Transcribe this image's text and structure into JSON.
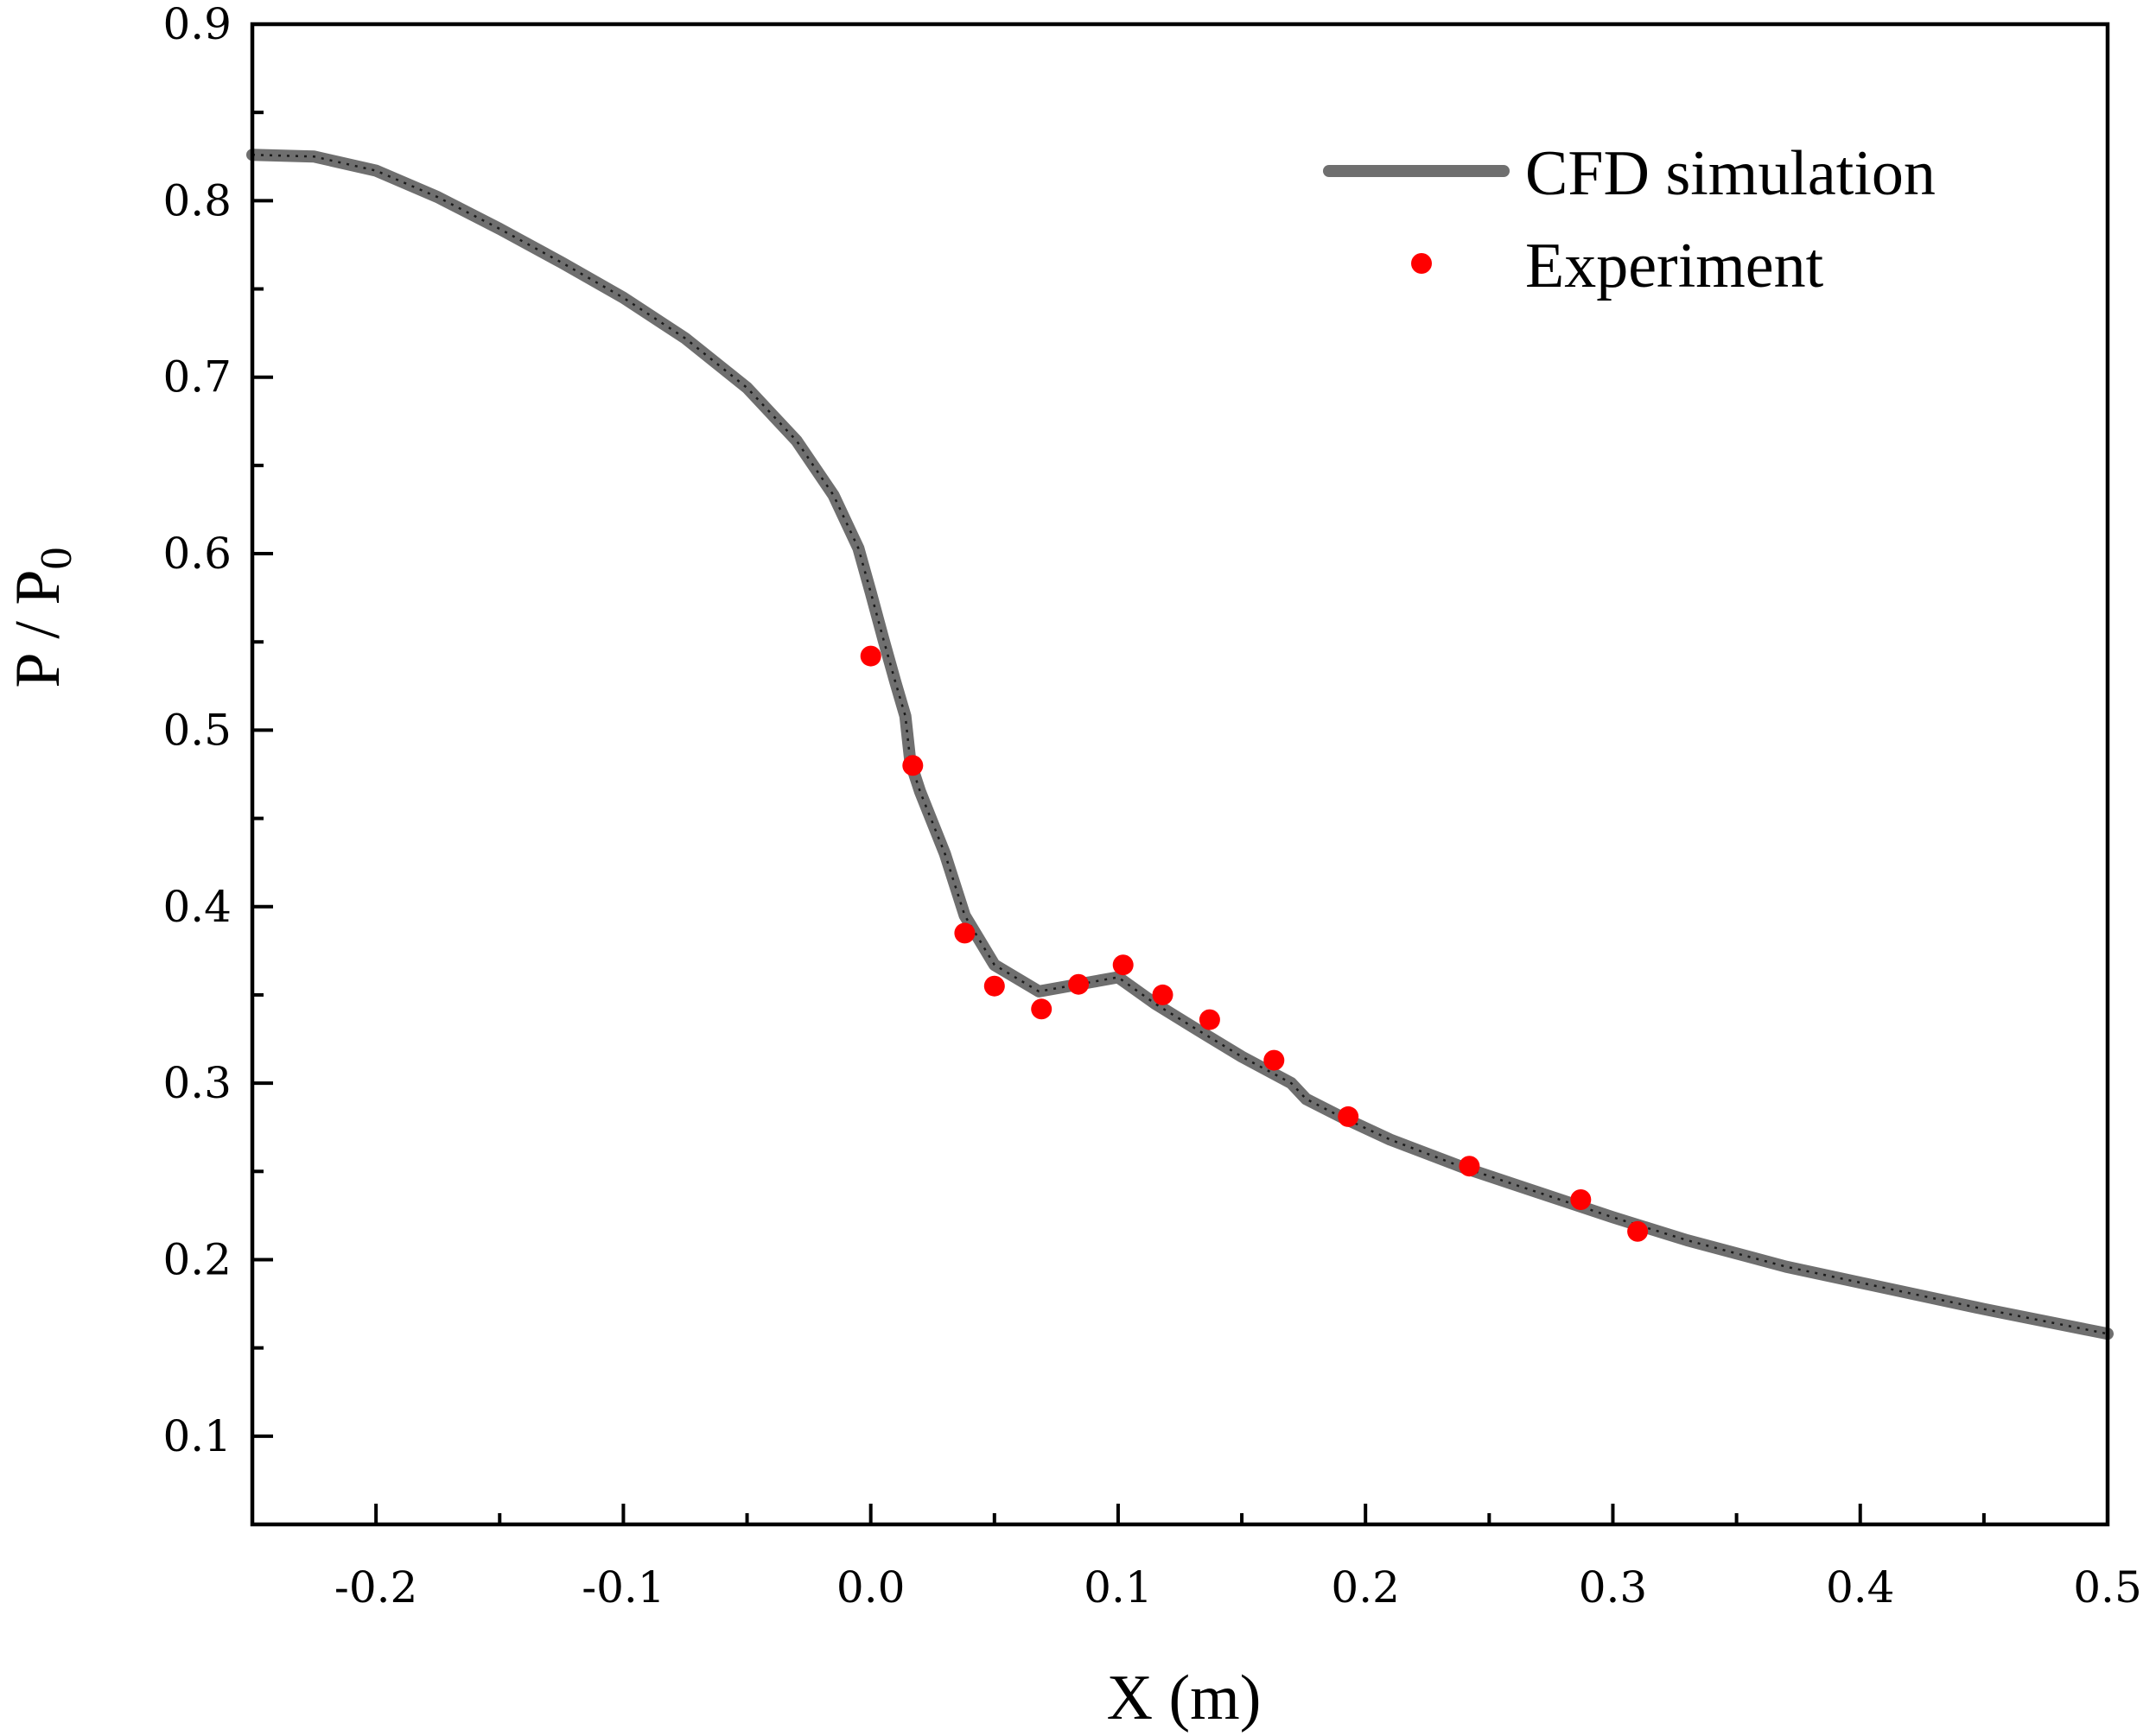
{
  "chart_data": {
    "type": "line",
    "title": "",
    "xlabel": "X (m)",
    "ylabel_main": "P / P",
    "ylabel_sub": "0",
    "xlim": [
      -0.25,
      0.5
    ],
    "ylim": [
      0.05,
      0.9
    ],
    "x_ticks": [
      -0.2,
      -0.1,
      0.0,
      0.1,
      0.2,
      0.3,
      0.4,
      0.5
    ],
    "x_tick_labels": [
      "-0.2",
      "-0.1",
      "0.0",
      "0.1",
      "0.2",
      "0.3",
      "0.4",
      "0.5"
    ],
    "y_ticks": [
      0.1,
      0.2,
      0.3,
      0.4,
      0.5,
      0.6,
      0.7,
      0.8,
      0.9
    ],
    "y_tick_labels": [
      "0.1",
      "0.2",
      "0.3",
      "0.4",
      "0.5",
      "0.6",
      "0.7",
      "0.8",
      "0.9"
    ],
    "grid": false,
    "legend_position": "top-right",
    "colors": {
      "simulation": "#6f6f6f",
      "experiment": "#ff0000",
      "axis": "#000000"
    },
    "series": [
      {
        "name": "CFD simulation",
        "kind": "line",
        "x": [
          -0.25,
          -0.225,
          -0.2,
          -0.175,
          -0.15,
          -0.125,
          -0.1,
          -0.075,
          -0.05,
          -0.03,
          -0.015,
          -0.005,
          0.0,
          0.005,
          0.01,
          0.014,
          0.016,
          0.02,
          0.03,
          0.038,
          0.05,
          0.068,
          0.1,
          0.115,
          0.13,
          0.15,
          0.17,
          0.176,
          0.19,
          0.21,
          0.24,
          0.27,
          0.3,
          0.33,
          0.37,
          0.41,
          0.45,
          0.5
        ],
        "y": [
          0.826,
          0.825,
          0.817,
          0.802,
          0.784,
          0.765,
          0.745,
          0.722,
          0.694,
          0.664,
          0.633,
          0.603,
          0.578,
          0.552,
          0.527,
          0.508,
          0.482,
          0.465,
          0.43,
          0.395,
          0.367,
          0.352,
          0.36,
          0.345,
          0.332,
          0.315,
          0.3,
          0.291,
          0.281,
          0.268,
          0.252,
          0.238,
          0.224,
          0.211,
          0.196,
          0.184,
          0.172,
          0.158
        ]
      },
      {
        "name": "Experiment",
        "kind": "scatter",
        "x": [
          0.0,
          0.017,
          0.038,
          0.05,
          0.069,
          0.084,
          0.102,
          0.118,
          0.137,
          0.163,
          0.193,
          0.242,
          0.287,
          0.31
        ],
        "y": [
          0.542,
          0.48,
          0.385,
          0.355,
          0.342,
          0.356,
          0.367,
          0.35,
          0.336,
          0.313,
          0.281,
          0.253,
          0.234,
          0.216
        ]
      }
    ]
  }
}
